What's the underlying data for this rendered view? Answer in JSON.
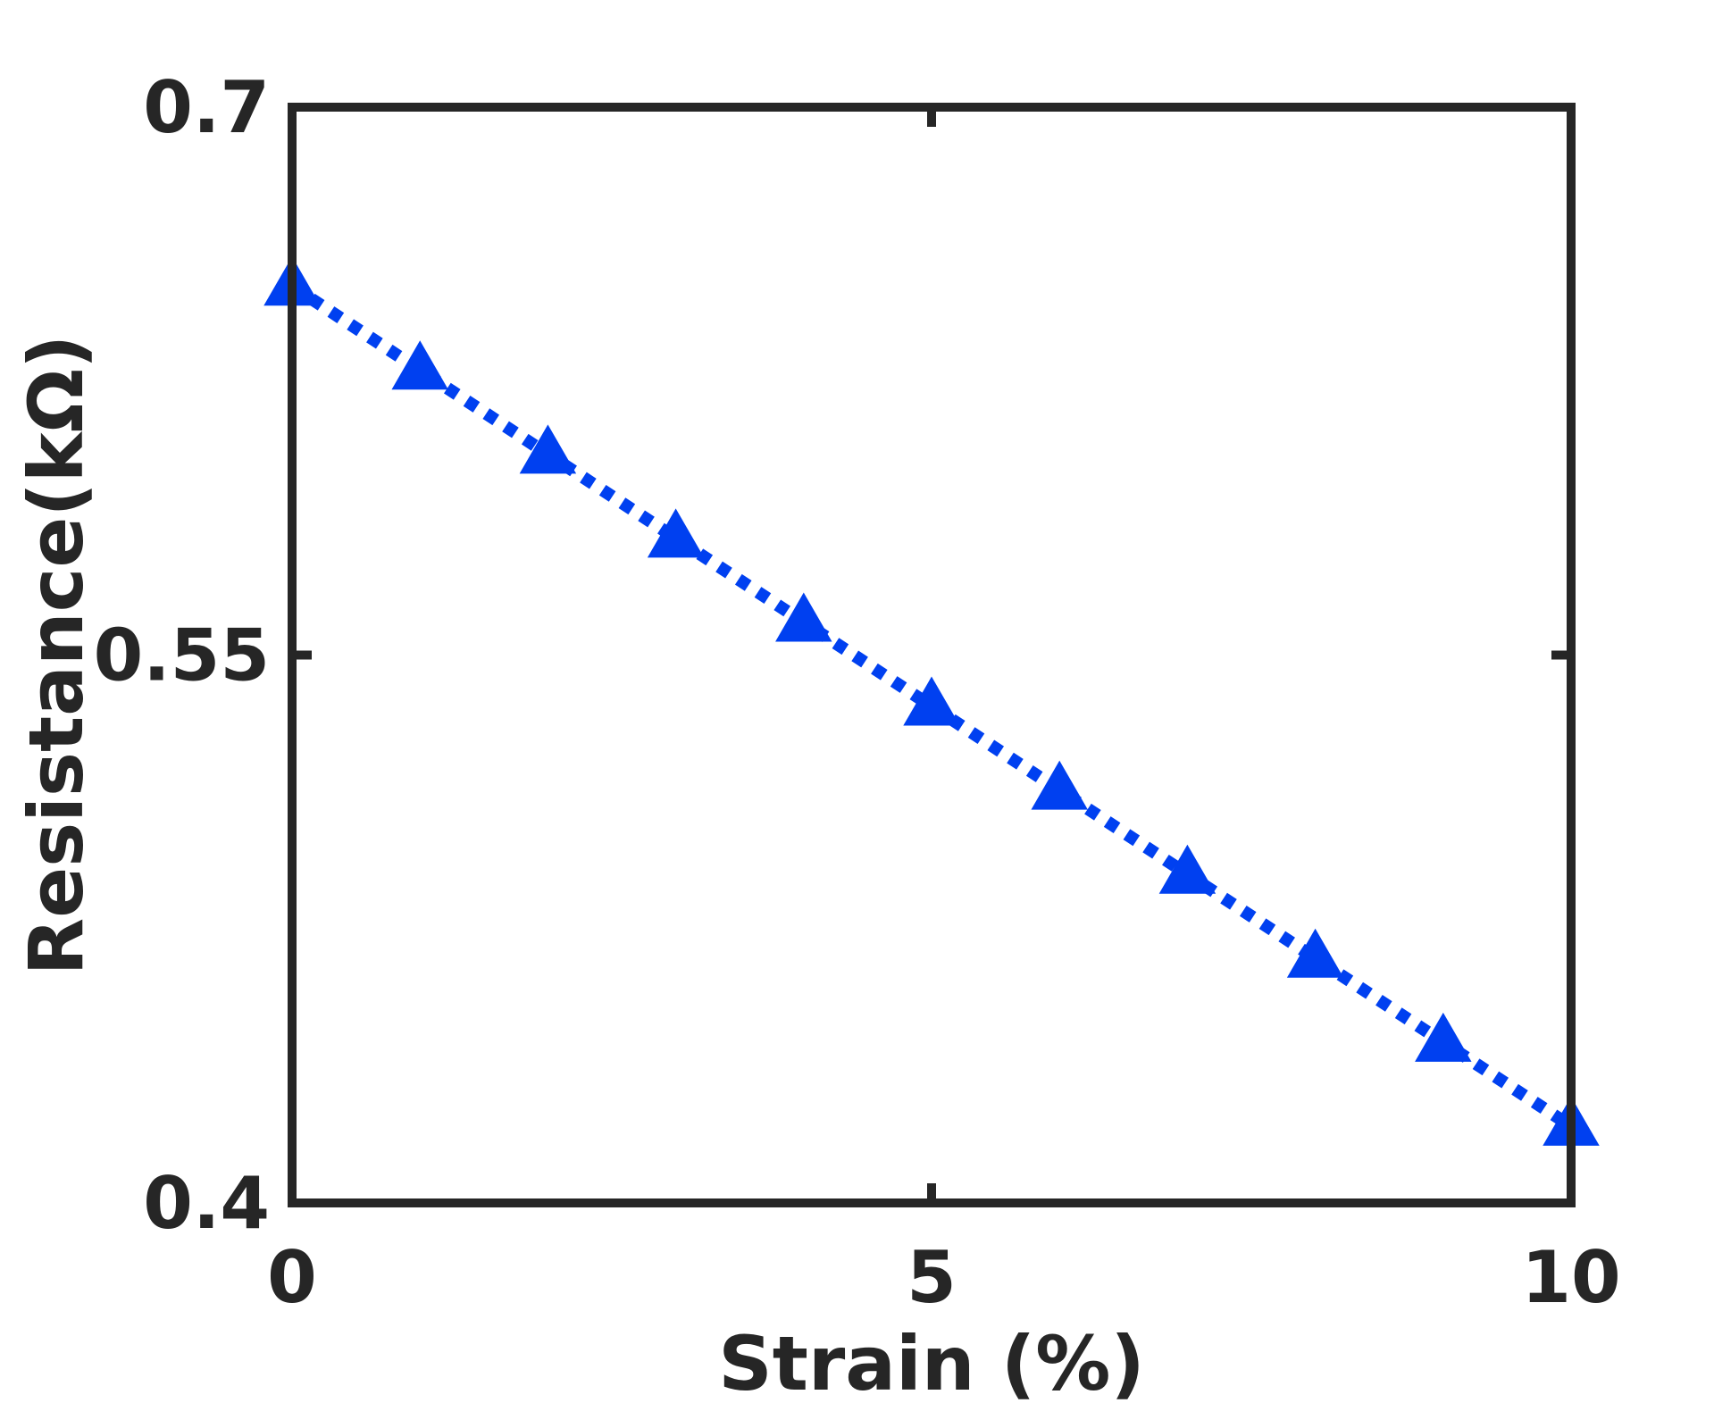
{
  "colors": {
    "axes": "#262626",
    "series": "#0040F0",
    "background": "#FFFFFF"
  },
  "chart_data": {
    "type": "line",
    "title": "",
    "xlabel": "Strain (%)",
    "ylabel": "Resistance(kΩ)",
    "xlim": [
      0,
      10
    ],
    "ylim": [
      0.4,
      0.7
    ],
    "xticks": [
      0,
      5,
      10
    ],
    "xtick_labels": [
      "0",
      "5",
      "10"
    ],
    "yticks": [
      0.4,
      0.55,
      0.7
    ],
    "ytick_labels": [
      "0.4",
      "0.55",
      "0.7"
    ],
    "grid": false,
    "box": true,
    "series": [
      {
        "line_style": "dotted",
        "marker": "triangle-up",
        "x": [
          0,
          1,
          2,
          3,
          4,
          5,
          6,
          7,
          8,
          9,
          10
        ],
        "y": [
          0.651,
          0.628,
          0.605,
          0.582,
          0.559,
          0.536,
          0.513,
          0.49,
          0.467,
          0.444,
          0.421
        ]
      }
    ]
  }
}
